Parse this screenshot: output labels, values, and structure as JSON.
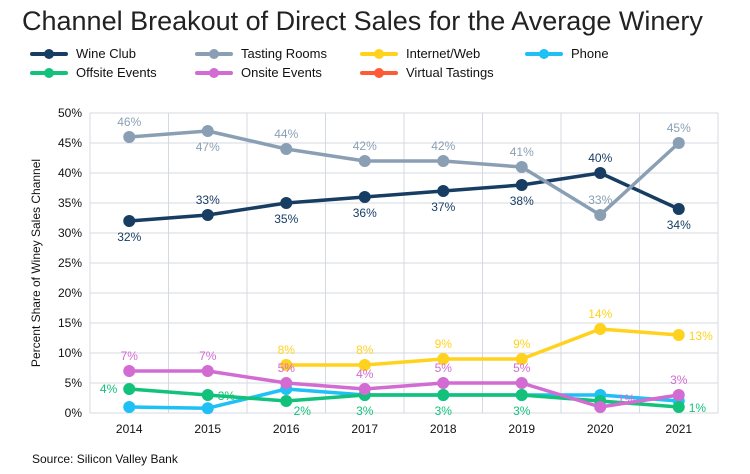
{
  "chart_data": {
    "type": "line",
    "title": "Channel Breakout of Direct Sales for the Average Winery",
    "ylabel": "Percent Share of Winey Sales Channel",
    "xlabel": "",
    "categories": [
      "2014",
      "2015",
      "2016",
      "2017",
      "2018",
      "2019",
      "2020",
      "2021"
    ],
    "ylim": [
      0,
      50
    ],
    "yticks": [
      "0%",
      "5%",
      "10%",
      "15%",
      "20%",
      "25%",
      "30%",
      "35%",
      "40%",
      "45%",
      "50%"
    ],
    "grid": true,
    "legend_placement": "top",
    "series": [
      {
        "name": "Wine Club",
        "color": "#173d63",
        "values": [
          32,
          33,
          35,
          36,
          37,
          38,
          40,
          34
        ],
        "labels": [
          "32%",
          "33%",
          "35%",
          "36%",
          "37%",
          "38%",
          "40%",
          "34%"
        ],
        "label_pos": [
          "below",
          "above",
          "below",
          "below",
          "below",
          "below",
          "above",
          "below"
        ]
      },
      {
        "name": "Tasting Rooms",
        "color": "#8a9fb3",
        "values": [
          46,
          47,
          44,
          42,
          42,
          41,
          33,
          45
        ],
        "labels": [
          "46%",
          "47%",
          "44%",
          "42%",
          "42%",
          "41%",
          "33%",
          "45%"
        ],
        "label_pos": [
          "above",
          "below",
          "above",
          "above",
          "above",
          "above",
          "above",
          "above"
        ]
      },
      {
        "name": "Internet/Web",
        "color": "#ffd21e",
        "values": [
          null,
          null,
          8,
          8,
          9,
          9,
          14,
          13
        ],
        "labels": [
          null,
          null,
          "8%",
          "8%",
          "9%",
          "9%",
          "14%",
          "13%"
        ],
        "label_pos": [
          null,
          null,
          "above",
          "above",
          "above",
          "above",
          "above",
          "right"
        ]
      },
      {
        "name": "Phone",
        "color": "#1ec0f5",
        "values": [
          1,
          0.8,
          4,
          3,
          3,
          3,
          3,
          2
        ],
        "labels": [
          null,
          null,
          null,
          null,
          null,
          null,
          null,
          null
        ],
        "label_pos": []
      },
      {
        "name": "Offsite Events",
        "color": "#13c27a",
        "values": [
          4,
          3,
          2,
          3,
          3,
          3,
          2,
          1
        ],
        "labels": [
          "4%",
          "3%",
          "2%",
          "3%",
          "3%",
          "3%",
          null,
          "1%"
        ],
        "label_pos": [
          "left",
          "right",
          "belowright",
          "below",
          "below",
          "below",
          null,
          "right"
        ]
      },
      {
        "name": "Onsite Events",
        "color": "#d26bd2",
        "values": [
          7,
          7,
          5,
          4,
          5,
          5,
          1,
          3
        ],
        "labels": [
          "7%",
          "7%",
          "5%",
          "4%",
          "5%",
          "5%",
          "1%",
          "3%"
        ],
        "label_pos": [
          "above",
          "above",
          "above",
          "above",
          "above",
          "above",
          "aboveright",
          "above"
        ]
      },
      {
        "name": "Virtual Tastings",
        "color": "#ff5a36",
        "values": [
          null,
          null,
          null,
          null,
          null,
          null,
          null,
          null
        ],
        "labels": [],
        "label_pos": []
      }
    ],
    "source": "Source: Silicon Valley Bank"
  }
}
